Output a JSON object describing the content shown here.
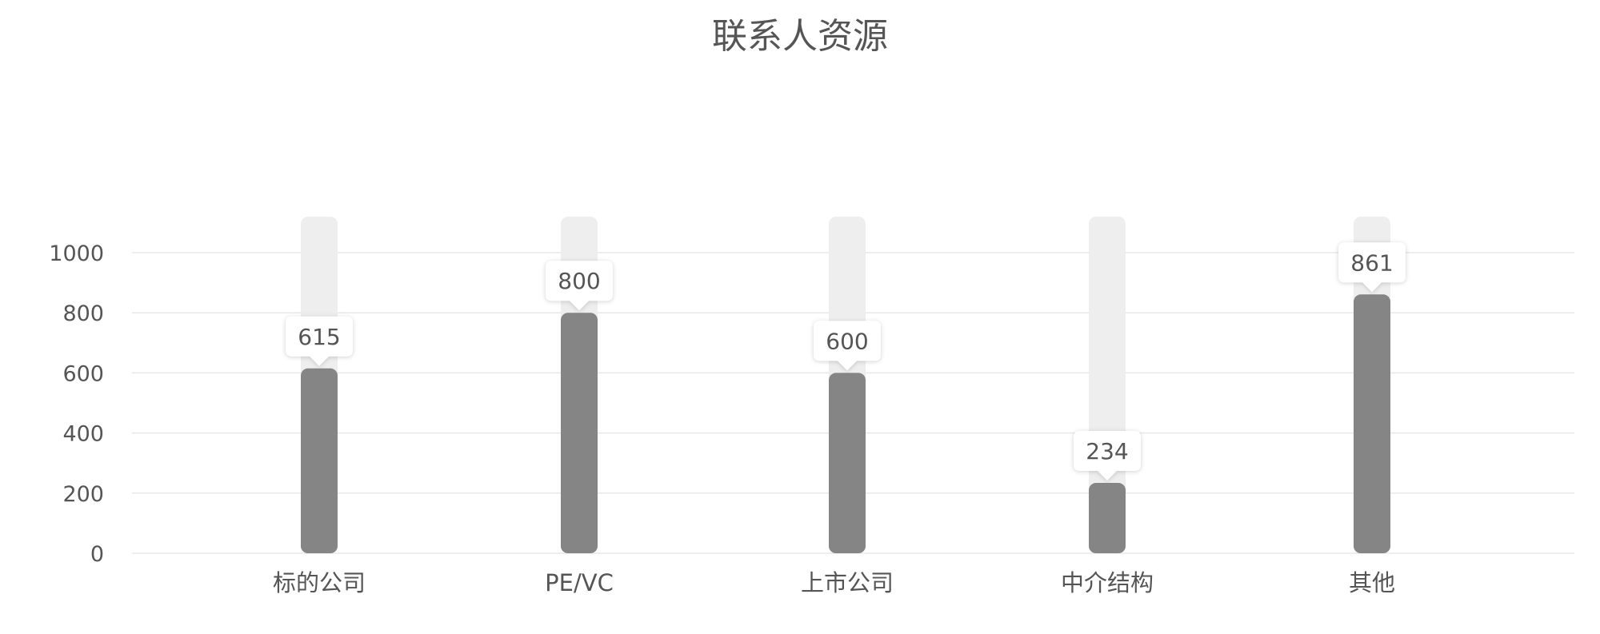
{
  "chart_data": {
    "type": "bar",
    "title": "联系人资源",
    "categories": [
      "标的公司",
      "PE/VC",
      "上市公司",
      "中介结构",
      "其他"
    ],
    "values": [
      615,
      800,
      600,
      234,
      861
    ],
    "ylim": [
      0,
      1000
    ],
    "yticks": [
      0,
      200,
      400,
      600,
      800,
      1000
    ],
    "grid": true,
    "colors": {
      "bar": "#858585",
      "track": "#eeeeee",
      "grid": "#e8e8e8",
      "text": "#555555",
      "label_bg": "#ffffff"
    }
  }
}
